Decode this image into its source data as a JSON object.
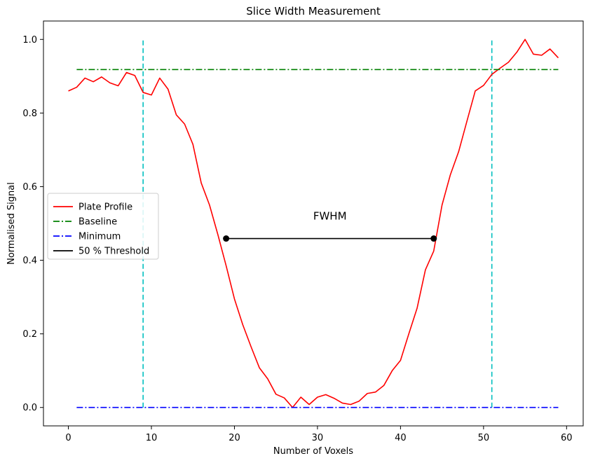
{
  "chart_data": {
    "type": "line",
    "title": "Slice Width Measurement",
    "xlabel": "Number of Voxels",
    "ylabel": "Normalised Signal",
    "xlim": [
      -3,
      62
    ],
    "ylim": [
      -0.05,
      1.05
    ],
    "x_ticks": [
      0,
      10,
      20,
      30,
      40,
      50,
      60
    ],
    "y_ticks": [
      0.0,
      0.2,
      0.4,
      0.6,
      0.8,
      1.0
    ],
    "x_tick_labels": [
      "0",
      "10",
      "20",
      "30",
      "40",
      "50",
      "60"
    ],
    "y_tick_labels": [
      "0.0",
      "0.2",
      "0.4",
      "0.6",
      "0.8",
      "1.0"
    ],
    "grid": false,
    "legend_position": "center-left",
    "series": [
      {
        "name": "Plate Profile",
        "color": "#ff0000",
        "style": "solid",
        "x": [
          0,
          1,
          2,
          3,
          4,
          5,
          6,
          7,
          8,
          9,
          10,
          11,
          12,
          13,
          14,
          15,
          16,
          17,
          18,
          19,
          20,
          21,
          22,
          23,
          24,
          25,
          26,
          27,
          28,
          29,
          30,
          31,
          32,
          33,
          34,
          35,
          36,
          37,
          38,
          39,
          40,
          41,
          42,
          43,
          44,
          45,
          46,
          47,
          48,
          49,
          50,
          51,
          52,
          53,
          54,
          55,
          56,
          57,
          58,
          59
        ],
        "y": [
          0.86,
          0.87,
          0.895,
          0.885,
          0.898,
          0.882,
          0.874,
          0.91,
          0.902,
          0.856,
          0.849,
          0.895,
          0.865,
          0.795,
          0.77,
          0.715,
          0.61,
          0.55,
          0.47,
          0.385,
          0.295,
          0.225,
          0.165,
          0.108,
          0.078,
          0.036,
          0.026,
          0.0,
          0.028,
          0.008,
          0.028,
          0.035,
          0.025,
          0.012,
          0.008,
          0.017,
          0.038,
          0.042,
          0.06,
          0.1,
          0.128,
          0.2,
          0.27,
          0.374,
          0.425,
          0.55,
          0.632,
          0.695,
          0.778,
          0.86,
          0.875,
          0.905,
          0.922,
          0.938,
          0.965,
          1.0,
          0.96,
          0.957,
          0.974,
          0.95
        ]
      },
      {
        "name": "Baseline",
        "color": "#008000",
        "style": "dashdot",
        "x": [
          1,
          59
        ],
        "y": [
          0.918,
          0.918
        ]
      },
      {
        "name": "Minimum",
        "color": "#0000ff",
        "style": "dashdot",
        "x": [
          1,
          59
        ],
        "y": [
          0.0,
          0.0
        ]
      },
      {
        "name": "50 % Threshold",
        "color": "#000000",
        "style": "solid",
        "markers": true,
        "x": [
          19,
          44
        ],
        "y": [
          0.459,
          0.459
        ]
      }
    ],
    "vertical_lines": [
      {
        "x": 9,
        "ymin": 0.0,
        "ymax": 1.0,
        "color": "#00bfbf"
      },
      {
        "x": 51,
        "ymin": 0.0,
        "ymax": 1.0,
        "color": "#00bfbf"
      }
    ],
    "annotations": [
      {
        "text": "FWHM",
        "x": 31.5,
        "y": 0.51
      }
    ]
  }
}
